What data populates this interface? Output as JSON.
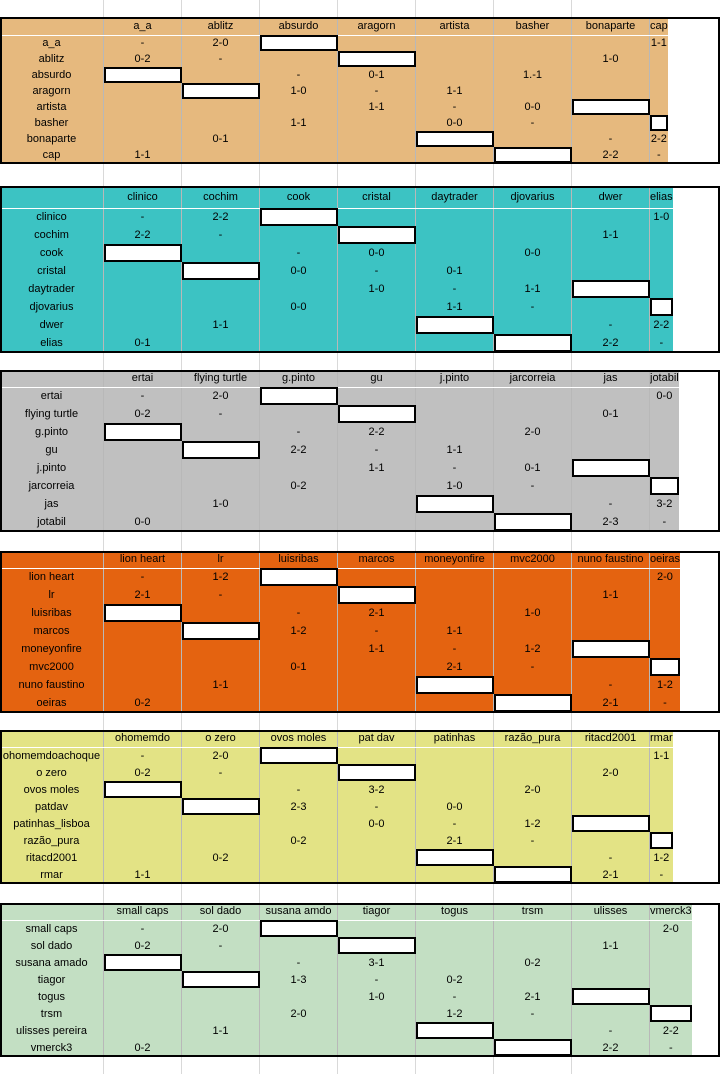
{
  "groups": [
    {
      "color": "#E6B97E",
      "headers": [
        "a_a",
        "ablitz",
        "absurdo",
        "aragorn",
        "artista",
        "basher",
        "bonaparte",
        "cap"
      ],
      "rows": [
        {
          "name": "a_a",
          "cells": [
            "-",
            "2-0",
            "#",
            "",
            "",
            "",
            "",
            "1-1"
          ]
        },
        {
          "name": "ablitz",
          "cells": [
            "0-2",
            "-",
            "",
            "#",
            "",
            "",
            "1-0",
            ""
          ]
        },
        {
          "name": "absurdo",
          "cells": [
            "#",
            "",
            "-",
            "0-1",
            "",
            "1.-1",
            "",
            ""
          ]
        },
        {
          "name": "aragorn",
          "cells": [
            "",
            "#",
            "1-0",
            "-",
            "1-1",
            "",
            "",
            ""
          ]
        },
        {
          "name": "artista",
          "cells": [
            "",
            "",
            "",
            "1-1",
            "-",
            "0-0",
            "#",
            ""
          ]
        },
        {
          "name": "basher",
          "cells": [
            "",
            "",
            "1-1",
            "",
            "0-0",
            "-",
            "",
            "#"
          ]
        },
        {
          "name": "bonaparte",
          "cells": [
            "",
            "0-1",
            "",
            "",
            "#",
            "",
            "-",
            "2-2"
          ]
        },
        {
          "name": "cap",
          "cells": [
            "1-1",
            "",
            "",
            "",
            "",
            "#",
            "2-2",
            "-"
          ]
        }
      ]
    },
    {
      "color": "#3CC3C3",
      "headers": [
        "clinico",
        "cochim",
        "cook",
        "cristal",
        "daytrader",
        "djovarius",
        "dwer",
        "elias"
      ],
      "rows": [
        {
          "name": "clinico",
          "cells": [
            "-",
            "2-2",
            "#",
            "",
            "",
            "",
            "",
            "1-0"
          ]
        },
        {
          "name": "cochim",
          "cells": [
            "2-2",
            "-",
            "",
            "#",
            "",
            "",
            "1-1",
            ""
          ]
        },
        {
          "name": "cook",
          "cells": [
            "#",
            "",
            "-",
            "0-0",
            "",
            "0-0",
            "",
            ""
          ]
        },
        {
          "name": "cristal",
          "cells": [
            "",
            "#",
            "0-0",
            "-",
            "0-1",
            "",
            "",
            ""
          ]
        },
        {
          "name": "daytrader",
          "cells": [
            "",
            "",
            "",
            "1-0",
            "-",
            "1-1",
            "#",
            ""
          ]
        },
        {
          "name": "djovarius",
          "cells": [
            "",
            "",
            "0-0",
            "",
            "1-1",
            "-",
            "",
            "#"
          ]
        },
        {
          "name": "dwer",
          "cells": [
            "",
            "1-1",
            "",
            "",
            "#",
            "",
            "-",
            "2-2"
          ]
        },
        {
          "name": "elias",
          "cells": [
            "0-1",
            "",
            "",
            "",
            "",
            "#",
            "2-2",
            "-"
          ]
        }
      ]
    },
    {
      "color": "#C0C0C0",
      "headers": [
        "ertai",
        "flying turtle",
        "g.pinto",
        "gu",
        "j.pinto",
        "jarcorreia",
        "jas",
        "jotabil"
      ],
      "rows": [
        {
          "name": "ertai",
          "cells": [
            "-",
            "2-0",
            "#",
            "",
            "",
            "",
            "",
            "0-0"
          ]
        },
        {
          "name": "flying turtle",
          "cells": [
            "0-2",
            "-",
            "",
            "#",
            "",
            "",
            "0-1",
            ""
          ]
        },
        {
          "name": "g.pinto",
          "cells": [
            "#",
            "",
            "-",
            "2-2",
            "",
            "2-0",
            "",
            ""
          ]
        },
        {
          "name": "gu",
          "cells": [
            "",
            "#",
            "2-2",
            "-",
            "1-1",
            "",
            "",
            ""
          ]
        },
        {
          "name": "j.pinto",
          "cells": [
            "",
            "",
            "",
            "1-1",
            "-",
            "0-1",
            "#",
            ""
          ]
        },
        {
          "name": "jarcorreia",
          "cells": [
            "",
            "",
            "0-2",
            "",
            "1-0",
            "-",
            "",
            "#"
          ]
        },
        {
          "name": "jas",
          "cells": [
            "",
            "1-0",
            "",
            "",
            "#",
            "",
            "-",
            "3-2"
          ]
        },
        {
          "name": "jotabil",
          "cells": [
            "0-0",
            "",
            "",
            "",
            "",
            "#",
            "2-3",
            "-"
          ]
        }
      ]
    },
    {
      "color": "#E46310",
      "headers": [
        "lion heart",
        "lr",
        "luisribas",
        "marcos",
        "moneyonfire",
        "mvc2000",
        "nuno faustino",
        "oeiras"
      ],
      "rows": [
        {
          "name": "lion heart",
          "cells": [
            "-",
            "1-2",
            "#",
            "",
            "",
            "",
            "",
            "2-0"
          ]
        },
        {
          "name": "lr",
          "cells": [
            "2-1",
            "-",
            "",
            "#",
            "",
            "",
            "1-1",
            ""
          ]
        },
        {
          "name": "luisribas",
          "cells": [
            "#",
            "",
            "-",
            "2-1",
            "",
            "1-0",
            "",
            ""
          ]
        },
        {
          "name": "marcos",
          "cells": [
            "",
            "#",
            "1-2",
            "-",
            "1-1",
            "",
            "",
            ""
          ]
        },
        {
          "name": "moneyonfire",
          "cells": [
            "",
            "",
            "",
            "1-1",
            "-",
            "1-2",
            "#",
            ""
          ]
        },
        {
          "name": "mvc2000",
          "cells": [
            "",
            "",
            "0-1",
            "",
            "2-1",
            "-",
            "",
            "#"
          ]
        },
        {
          "name": "nuno faustino",
          "cells": [
            "",
            "1-1",
            "",
            "",
            "#",
            "",
            "-",
            "1-2"
          ]
        },
        {
          "name": "oeiras",
          "cells": [
            "0-2",
            "",
            "",
            "",
            "",
            "#",
            "2-1",
            "-"
          ]
        }
      ]
    },
    {
      "color": "#E3E385",
      "headers": [
        "ohomemdo",
        "o zero",
        "ovos moles",
        "pat dav",
        "patinhas",
        "razão_pura",
        "ritacd2001",
        "rmar"
      ],
      "rows": [
        {
          "name": "ohomemdoachoque",
          "cells": [
            "-",
            "2-0",
            "#",
            "",
            "",
            "",
            "",
            "1-1"
          ]
        },
        {
          "name": "o zero",
          "cells": [
            "0-2",
            "-",
            "",
            "#",
            "",
            "",
            "2-0",
            ""
          ]
        },
        {
          "name": "ovos moles",
          "cells": [
            "#",
            "",
            "-",
            "3-2",
            "",
            "2-0",
            "",
            ""
          ]
        },
        {
          "name": "patdav",
          "cells": [
            "",
            "#",
            "2-3",
            "-",
            "0-0",
            "",
            "",
            ""
          ]
        },
        {
          "name": "patinhas_lisboa",
          "cells": [
            "",
            "",
            "",
            "0-0",
            "-",
            "1-2",
            "#",
            ""
          ]
        },
        {
          "name": "razão_pura",
          "cells": [
            "",
            "",
            "0-2",
            "",
            "2-1",
            "-",
            "",
            "#"
          ]
        },
        {
          "name": "ritacd2001",
          "cells": [
            "",
            "0-2",
            "",
            "",
            "#",
            "",
            "-",
            "1-2"
          ]
        },
        {
          "name": "rmar",
          "cells": [
            "1-1",
            "",
            "",
            "",
            "",
            "#",
            "2-1",
            "-"
          ]
        }
      ]
    },
    {
      "color": "#C3DFC3",
      "headers": [
        "small caps",
        "sol dado",
        "susana amdo",
        "tiagor",
        "togus",
        "trsm",
        "ulisses",
        "vmerck3"
      ],
      "rows": [
        {
          "name": "small caps",
          "cells": [
            "-",
            "2-0",
            "#",
            "",
            "",
            "",
            "",
            "2-0"
          ]
        },
        {
          "name": "sol dado",
          "cells": [
            "0-2",
            "-",
            "",
            "#",
            "",
            "",
            "1-1",
            ""
          ]
        },
        {
          "name": "susana amado",
          "cells": [
            "#",
            "",
            "-",
            "3-1",
            "",
            "0-2",
            "",
            ""
          ]
        },
        {
          "name": "tiagor",
          "cells": [
            "",
            "#",
            "1-3",
            "-",
            "0-2",
            "",
            "",
            ""
          ]
        },
        {
          "name": "togus",
          "cells": [
            "",
            "",
            "",
            "1-0",
            "-",
            "2-1",
            "#",
            ""
          ]
        },
        {
          "name": "trsm",
          "cells": [
            "",
            "",
            "2-0",
            "",
            "1-2",
            "-",
            "",
            "#"
          ]
        },
        {
          "name": "ulisses pereira",
          "cells": [
            "",
            "1-1",
            "",
            "",
            "#",
            "",
            "-",
            "2-2"
          ]
        },
        {
          "name": "vmerck3",
          "cells": [
            "0-2",
            "",
            "",
            "",
            "",
            "#",
            "2-2",
            "-"
          ]
        }
      ]
    }
  ]
}
